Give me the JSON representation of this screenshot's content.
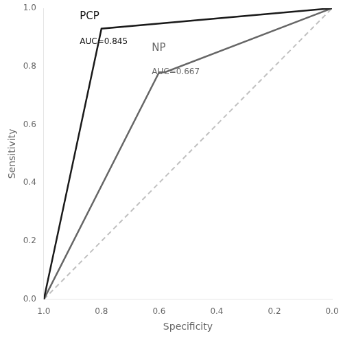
{
  "chart_data": {
    "type": "line",
    "xlabel": "Specificity",
    "ylabel": "Sensitivity",
    "xlim": [
      1.0,
      0.0
    ],
    "ylim": [
      0.0,
      1.0
    ],
    "xticks": [
      {
        "value": 1.0,
        "label": "1.0"
      },
      0.8,
      0.6,
      0.4,
      0.2,
      {
        "value": 0.0,
        "label": "0.0"
      }
    ],
    "yticks": [
      {
        "value": 0.0,
        "label": "0.0"
      },
      0.2,
      0.4,
      0.6,
      0.8,
      {
        "value": 1.0,
        "label": "1.0"
      }
    ],
    "grid": false,
    "series": [
      {
        "x": [
          1.0,
          0.0
        ],
        "values": [
          0.0,
          1.0
        ],
        "color": "#c0c0c0",
        "line_style": "dashed"
      },
      {
        "x": [
          1.0,
          0.6,
          0.58,
          0.0
        ],
        "values": [
          0.0,
          0.78,
          0.78,
          1.0
        ],
        "color": "#666666",
        "line_style": "solid"
      },
      {
        "x": [
          1.0,
          0.8,
          0.0
        ],
        "values": [
          0.0,
          0.93,
          1.0
        ],
        "color": "#1a1a1a",
        "line_style": "solid"
      }
    ],
    "annotations": [
      {
        "text": "PCP",
        "x": 0.88,
        "y": 0.99,
        "color": "#111111"
      },
      {
        "text": "AUC=0.845",
        "x": 0.88,
        "y": 0.9,
        "color": "#111111"
      },
      {
        "text": "NP",
        "x": 0.63,
        "y": 0.88,
        "color": "#666666"
      },
      {
        "text": "AUC=0.667",
        "x": 0.63,
        "y": 0.795,
        "color": "#666666"
      }
    ]
  }
}
